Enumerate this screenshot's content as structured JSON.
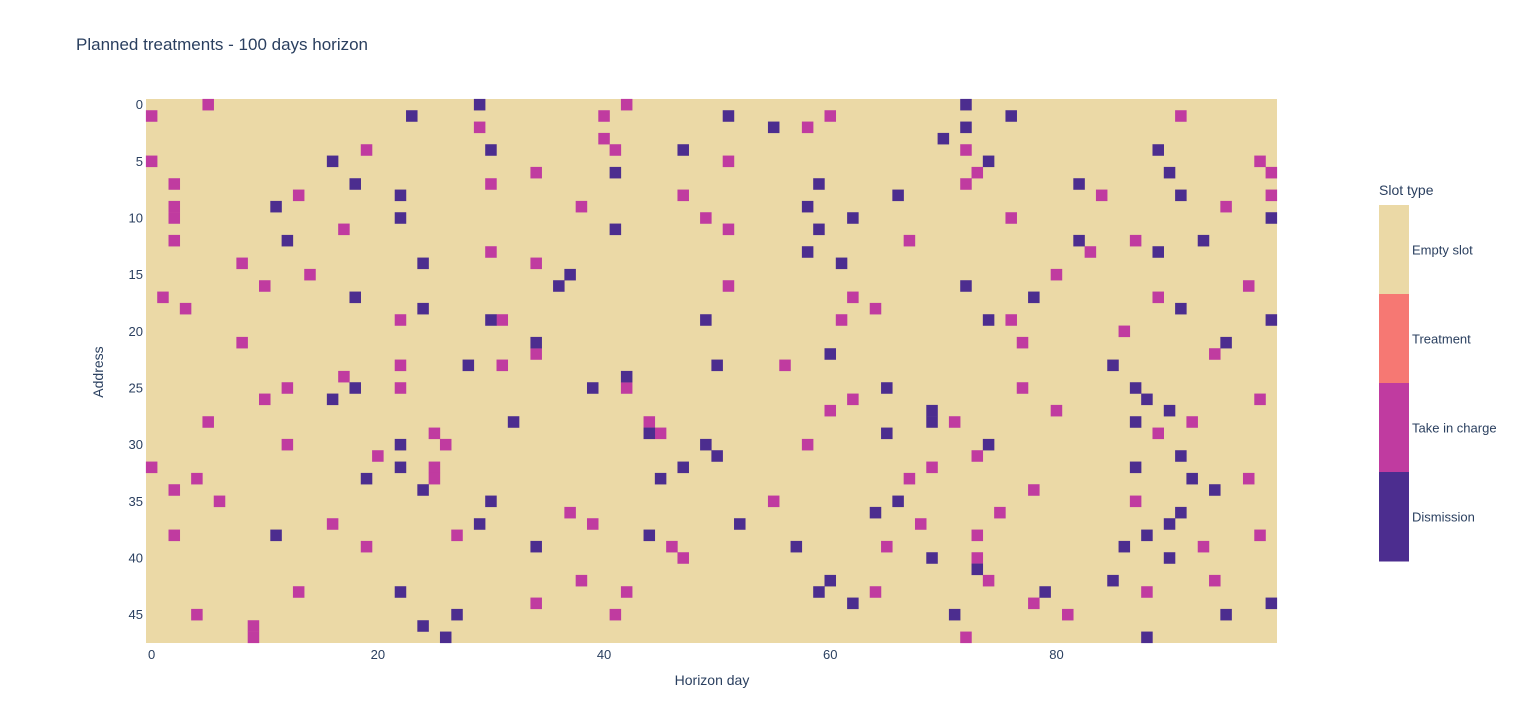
{
  "chart_data": {
    "type": "heatmap",
    "title": "Planned treatments - 100 days horizon",
    "xlabel": "Horizon day",
    "ylabel": "Address",
    "x_range": [
      0,
      99
    ],
    "y_range": [
      0,
      47
    ],
    "y_reversed": true,
    "x_ticks": [
      "0",
      "20",
      "40",
      "60",
      "80"
    ],
    "y_ticks": [
      "0",
      "5",
      "10",
      "15",
      "20",
      "25",
      "30",
      "35",
      "40",
      "45"
    ],
    "grid": false,
    "legend": {
      "title": "Slot type",
      "placement": "right",
      "categories": [
        {
          "label": "Empty slot",
          "color": "#ebd9a6"
        },
        {
          "label": "Treatment",
          "color": "#f67873"
        },
        {
          "label": "Take in charge",
          "color": "#c03ba0"
        },
        {
          "label": "Dismission",
          "color": "#4c2d8f"
        }
      ]
    },
    "background_category": "Empty slot",
    "cells": {
      "Take in charge": [
        [
          5,
          0
        ],
        [
          42,
          0
        ],
        [
          0,
          1
        ],
        [
          40,
          1
        ],
        [
          60,
          1
        ],
        [
          91,
          1
        ],
        [
          29,
          2
        ],
        [
          58,
          2
        ],
        [
          40,
          3
        ],
        [
          19,
          4
        ],
        [
          41,
          4
        ],
        [
          72,
          4
        ],
        [
          0,
          5
        ],
        [
          51,
          5
        ],
        [
          98,
          5
        ],
        [
          34,
          6
        ],
        [
          73,
          6
        ],
        [
          99,
          6
        ],
        [
          2,
          7
        ],
        [
          30,
          7
        ],
        [
          72,
          7
        ],
        [
          13,
          8
        ],
        [
          47,
          8
        ],
        [
          84,
          8
        ],
        [
          99,
          8
        ],
        [
          2,
          9
        ],
        [
          38,
          9
        ],
        [
          95,
          9
        ],
        [
          2,
          10
        ],
        [
          49,
          10
        ],
        [
          76,
          10
        ],
        [
          17,
          11
        ],
        [
          51,
          11
        ],
        [
          2,
          12
        ],
        [
          67,
          12
        ],
        [
          87,
          12
        ],
        [
          30,
          13
        ],
        [
          83,
          13
        ],
        [
          8,
          14
        ],
        [
          34,
          14
        ],
        [
          14,
          15
        ],
        [
          80,
          15
        ],
        [
          10,
          16
        ],
        [
          51,
          16
        ],
        [
          97,
          16
        ],
        [
          1,
          17
        ],
        [
          62,
          17
        ],
        [
          89,
          17
        ],
        [
          3,
          18
        ],
        [
          64,
          18
        ],
        [
          22,
          19
        ],
        [
          31,
          19
        ],
        [
          61,
          19
        ],
        [
          76,
          19
        ],
        [
          86,
          20
        ],
        [
          8,
          21
        ],
        [
          77,
          21
        ],
        [
          34,
          22
        ],
        [
          94,
          22
        ],
        [
          22,
          23
        ],
        [
          31,
          23
        ],
        [
          56,
          23
        ],
        [
          17,
          24
        ],
        [
          12,
          25
        ],
        [
          22,
          25
        ],
        [
          42,
          25
        ],
        [
          77,
          25
        ],
        [
          10,
          26
        ],
        [
          62,
          26
        ],
        [
          98,
          26
        ],
        [
          60,
          27
        ],
        [
          80,
          27
        ],
        [
          5,
          28
        ],
        [
          44,
          28
        ],
        [
          71,
          28
        ],
        [
          92,
          28
        ],
        [
          25,
          29
        ],
        [
          45,
          29
        ],
        [
          89,
          29
        ],
        [
          12,
          30
        ],
        [
          26,
          30
        ],
        [
          58,
          30
        ],
        [
          20,
          31
        ],
        [
          73,
          31
        ],
        [
          0,
          32
        ],
        [
          25,
          32
        ],
        [
          69,
          32
        ],
        [
          4,
          33
        ],
        [
          25,
          33
        ],
        [
          67,
          33
        ],
        [
          97,
          33
        ],
        [
          2,
          34
        ],
        [
          78,
          34
        ],
        [
          6,
          35
        ],
        [
          55,
          35
        ],
        [
          87,
          35
        ],
        [
          37,
          36
        ],
        [
          75,
          36
        ],
        [
          16,
          37
        ],
        [
          39,
          37
        ],
        [
          68,
          37
        ],
        [
          2,
          38
        ],
        [
          27,
          38
        ],
        [
          73,
          38
        ],
        [
          98,
          38
        ],
        [
          19,
          39
        ],
        [
          46,
          39
        ],
        [
          65,
          39
        ],
        [
          93,
          39
        ],
        [
          47,
          40
        ],
        [
          73,
          40
        ],
        [
          38,
          42
        ],
        [
          74,
          42
        ],
        [
          94,
          42
        ],
        [
          13,
          43
        ],
        [
          42,
          43
        ],
        [
          64,
          43
        ],
        [
          88,
          43
        ],
        [
          34,
          44
        ],
        [
          78,
          44
        ],
        [
          4,
          45
        ],
        [
          41,
          45
        ],
        [
          81,
          45
        ],
        [
          9,
          46
        ],
        [
          9,
          47
        ],
        [
          72,
          47
        ]
      ],
      "Dismission": [
        [
          29,
          0
        ],
        [
          72,
          0
        ],
        [
          23,
          1
        ],
        [
          51,
          1
        ],
        [
          76,
          1
        ],
        [
          55,
          2
        ],
        [
          72,
          2
        ],
        [
          70,
          3
        ],
        [
          30,
          4
        ],
        [
          47,
          4
        ],
        [
          89,
          4
        ],
        [
          16,
          5
        ],
        [
          74,
          5
        ],
        [
          41,
          6
        ],
        [
          90,
          6
        ],
        [
          18,
          7
        ],
        [
          59,
          7
        ],
        [
          82,
          7
        ],
        [
          22,
          8
        ],
        [
          66,
          8
        ],
        [
          91,
          8
        ],
        [
          11,
          9
        ],
        [
          58,
          9
        ],
        [
          99,
          10
        ],
        [
          22,
          10
        ],
        [
          62,
          10
        ],
        [
          41,
          11
        ],
        [
          59,
          11
        ],
        [
          12,
          12
        ],
        [
          82,
          12
        ],
        [
          93,
          12
        ],
        [
          58,
          13
        ],
        [
          89,
          13
        ],
        [
          24,
          14
        ],
        [
          61,
          14
        ],
        [
          37,
          15
        ],
        [
          36,
          16
        ],
        [
          72,
          16
        ],
        [
          18,
          17
        ],
        [
          78,
          17
        ],
        [
          24,
          18
        ],
        [
          91,
          18
        ],
        [
          30,
          19
        ],
        [
          49,
          19
        ],
        [
          74,
          19
        ],
        [
          99,
          19
        ],
        [
          34,
          21
        ],
        [
          95,
          21
        ],
        [
          60,
          22
        ],
        [
          28,
          23
        ],
        [
          50,
          23
        ],
        [
          85,
          23
        ],
        [
          42,
          24
        ],
        [
          18,
          25
        ],
        [
          39,
          25
        ],
        [
          65,
          25
        ],
        [
          87,
          25
        ],
        [
          16,
          26
        ],
        [
          88,
          26
        ],
        [
          69,
          27
        ],
        [
          90,
          27
        ],
        [
          32,
          28
        ],
        [
          69,
          28
        ],
        [
          87,
          28
        ],
        [
          44,
          29
        ],
        [
          65,
          29
        ],
        [
          22,
          30
        ],
        [
          49,
          30
        ],
        [
          74,
          30
        ],
        [
          50,
          31
        ],
        [
          91,
          31
        ],
        [
          22,
          32
        ],
        [
          47,
          32
        ],
        [
          87,
          32
        ],
        [
          19,
          33
        ],
        [
          45,
          33
        ],
        [
          92,
          33
        ],
        [
          24,
          34
        ],
        [
          94,
          34
        ],
        [
          30,
          35
        ],
        [
          66,
          35
        ],
        [
          64,
          36
        ],
        [
          91,
          36
        ],
        [
          29,
          37
        ],
        [
          52,
          37
        ],
        [
          90,
          37
        ],
        [
          11,
          38
        ],
        [
          44,
          38
        ],
        [
          88,
          38
        ],
        [
          34,
          39
        ],
        [
          57,
          39
        ],
        [
          86,
          39
        ],
        [
          69,
          40
        ],
        [
          90,
          40
        ],
        [
          73,
          41
        ],
        [
          60,
          42
        ],
        [
          85,
          42
        ],
        [
          22,
          43
        ],
        [
          59,
          43
        ],
        [
          79,
          43
        ],
        [
          62,
          44
        ],
        [
          99,
          44
        ],
        [
          27,
          45
        ],
        [
          71,
          45
        ],
        [
          95,
          45
        ],
        [
          24,
          46
        ],
        [
          26,
          47
        ],
        [
          88,
          47
        ]
      ]
    }
  }
}
